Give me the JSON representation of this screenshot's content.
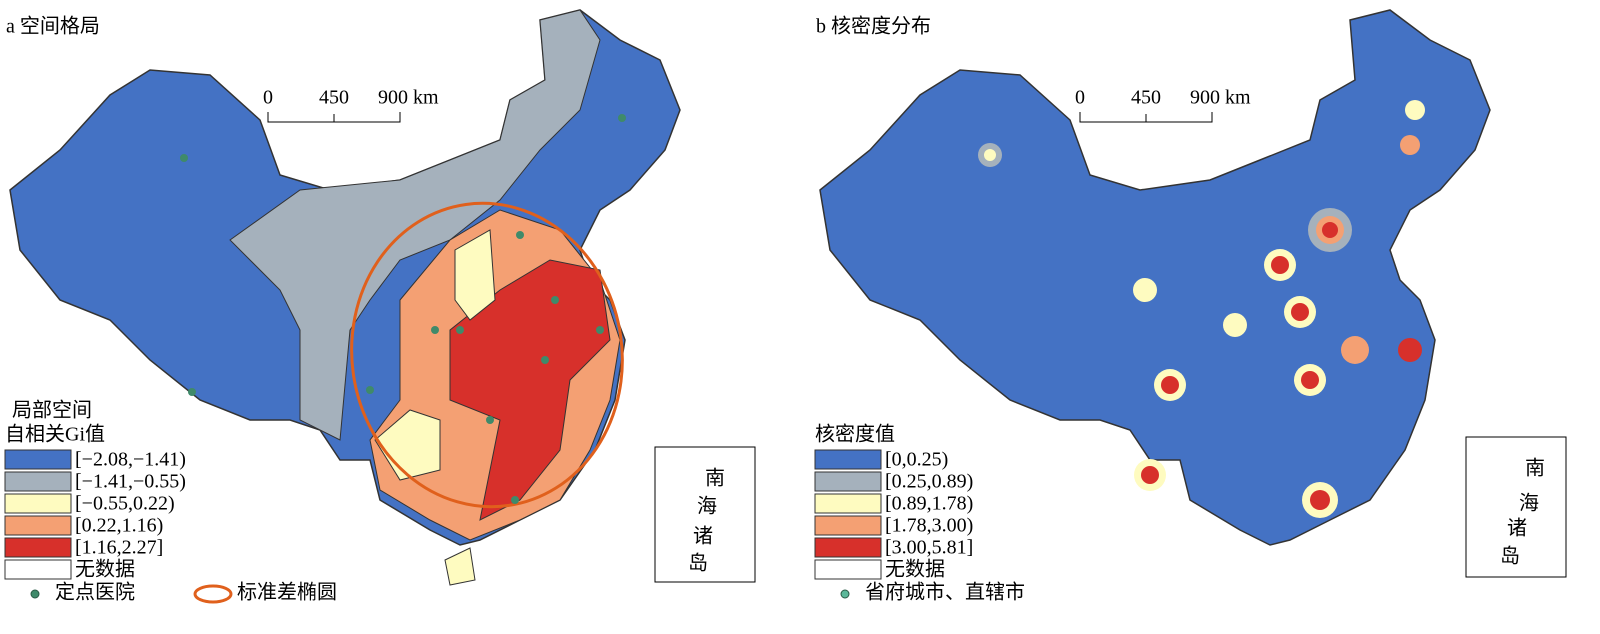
{
  "panels": [
    {
      "title": "a 空间格局",
      "scale_labels": [
        "0",
        "450",
        "900 km"
      ],
      "legend": {
        "title": [
          "局部空间",
          "自相关Gi值"
        ],
        "items": [
          {
            "label": "[−2.08,−1.41)",
            "color": "#4472c4"
          },
          {
            "label": "[−1.41,−0.55)",
            "color": "#a5b1bc"
          },
          {
            "label": "[−0.55,0.22)",
            "color": "#fefbc0"
          },
          {
            "label": "[0.22,1.16)",
            "color": "#f4a073"
          },
          {
            "label": "[1.16,2.27]",
            "color": "#d7302b"
          },
          {
            "label": "无数据",
            "color": "#ffffff"
          }
        ]
      },
      "point_legend": "定点医院",
      "ellipse_legend": "标准差椭圆",
      "inset_labels": [
        "南",
        "海",
        "诸",
        "岛"
      ]
    },
    {
      "title": "b 核密度分布",
      "scale_labels": [
        "0",
        "450",
        "900 km"
      ],
      "legend": {
        "title": [
          "核密度值"
        ],
        "items": [
          {
            "label": "[0,0.25)",
            "color": "#4472c4"
          },
          {
            "label": "[0.25,0.89)",
            "color": "#a5b1bc"
          },
          {
            "label": "[0.89,1.78)",
            "color": "#fefbc0"
          },
          {
            "label": "[1.78,3.00)",
            "color": "#f4a073"
          },
          {
            "label": "[3.00,5.81]",
            "color": "#d7302b"
          },
          {
            "label": "无数据",
            "color": "#ffffff"
          }
        ]
      },
      "point_legend": "省府城市、直辖市",
      "inset_labels": [
        "南",
        "海",
        "诸",
        "岛"
      ]
    }
  ]
}
